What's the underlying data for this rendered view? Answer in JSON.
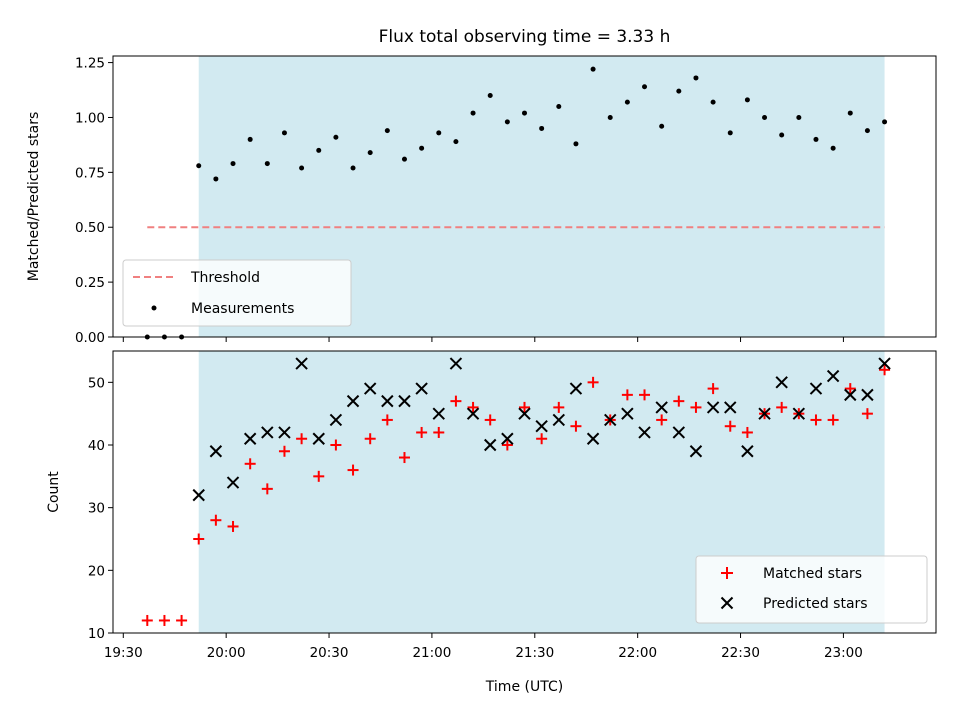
{
  "chart_data": {
    "type": "scatter",
    "title": "Flux total observing time = 3.33 h",
    "xlabel": "Time (UTC)",
    "x_ticks": [
      "19:30",
      "20:00",
      "20:30",
      "21:00",
      "21:30",
      "22:00",
      "22:30",
      "23:00"
    ],
    "x_range": [
      "19:27",
      "23:27"
    ],
    "shaded_interval": [
      "19:52",
      "23:12"
    ],
    "top_panel": {
      "ylabel": "Matched/Predicted stars",
      "ylim": [
        0,
        1.28
      ],
      "y_ticks": [
        "0.00",
        "0.25",
        "0.50",
        "0.75",
        "1.00",
        "1.25"
      ],
      "legend_position": "bottom-left",
      "threshold": {
        "name": "Threshold",
        "value": 0.5,
        "x_start": "19:37",
        "x_end": "23:12",
        "color": "#f08080"
      },
      "measurements": {
        "name": "Measurements",
        "color": "#000000",
        "points": [
          [
            "19:37",
            0.0
          ],
          [
            "19:42",
            0.0
          ],
          [
            "19:47",
            0.0
          ],
          [
            "19:52",
            0.78
          ],
          [
            "19:57",
            0.72
          ],
          [
            "20:02",
            0.79
          ],
          [
            "20:07",
            0.9
          ],
          [
            "20:12",
            0.79
          ],
          [
            "20:17",
            0.93
          ],
          [
            "20:22",
            0.77
          ],
          [
            "20:27",
            0.85
          ],
          [
            "20:32",
            0.91
          ],
          [
            "20:37",
            0.77
          ],
          [
            "20:42",
            0.84
          ],
          [
            "20:47",
            0.94
          ],
          [
            "20:52",
            0.81
          ],
          [
            "20:57",
            0.86
          ],
          [
            "21:02",
            0.93
          ],
          [
            "21:07",
            0.89
          ],
          [
            "21:12",
            1.02
          ],
          [
            "21:17",
            1.1
          ],
          [
            "21:22",
            0.98
          ],
          [
            "21:27",
            1.02
          ],
          [
            "21:32",
            0.95
          ],
          [
            "21:37",
            1.05
          ],
          [
            "21:42",
            0.88
          ],
          [
            "21:47",
            1.22
          ],
          [
            "21:52",
            1.0
          ],
          [
            "21:57",
            1.07
          ],
          [
            "22:02",
            1.14
          ],
          [
            "22:07",
            0.96
          ],
          [
            "22:12",
            1.12
          ],
          [
            "22:17",
            1.18
          ],
          [
            "22:22",
            1.07
          ],
          [
            "22:27",
            0.93
          ],
          [
            "22:32",
            1.08
          ],
          [
            "22:37",
            1.0
          ],
          [
            "22:42",
            0.92
          ],
          [
            "22:47",
            1.0
          ],
          [
            "22:52",
            0.9
          ],
          [
            "22:57",
            0.86
          ],
          [
            "23:02",
            1.02
          ],
          [
            "23:07",
            0.94
          ],
          [
            "23:12",
            0.98
          ]
        ]
      }
    },
    "bottom_panel": {
      "ylabel": "Count",
      "ylim": [
        10,
        55
      ],
      "y_ticks": [
        "10",
        "20",
        "30",
        "40",
        "50"
      ],
      "legend_position": "bottom-right",
      "series": [
        {
          "name": "Matched stars",
          "marker": "plus",
          "color": "#ff0000",
          "points": [
            [
              "19:37",
              12
            ],
            [
              "19:42",
              12
            ],
            [
              "19:47",
              12
            ],
            [
              "19:52",
              25
            ],
            [
              "19:57",
              28
            ],
            [
              "20:02",
              27
            ],
            [
              "20:07",
              37
            ],
            [
              "20:12",
              33
            ],
            [
              "20:17",
              39
            ],
            [
              "20:22",
              41
            ],
            [
              "20:27",
              35
            ],
            [
              "20:32",
              40
            ],
            [
              "20:37",
              36
            ],
            [
              "20:42",
              41
            ],
            [
              "20:47",
              44
            ],
            [
              "20:52",
              38
            ],
            [
              "20:57",
              42
            ],
            [
              "21:02",
              42
            ],
            [
              "21:07",
              47
            ],
            [
              "21:12",
              46
            ],
            [
              "21:17",
              44
            ],
            [
              "21:22",
              40
            ],
            [
              "21:27",
              46
            ],
            [
              "21:32",
              41
            ],
            [
              "21:37",
              46
            ],
            [
              "21:42",
              43
            ],
            [
              "21:47",
              50
            ],
            [
              "21:52",
              44
            ],
            [
              "21:57",
              48
            ],
            [
              "22:02",
              48
            ],
            [
              "22:07",
              44
            ],
            [
              "22:12",
              47
            ],
            [
              "22:17",
              46
            ],
            [
              "22:22",
              49
            ],
            [
              "22:27",
              43
            ],
            [
              "22:32",
              42
            ],
            [
              "22:37",
              45
            ],
            [
              "22:42",
              46
            ],
            [
              "22:47",
              45
            ],
            [
              "22:52",
              44
            ],
            [
              "22:57",
              44
            ],
            [
              "23:02",
              49
            ],
            [
              "23:07",
              45
            ],
            [
              "23:12",
              52
            ]
          ]
        },
        {
          "name": "Predicted stars",
          "marker": "x",
          "color": "#000000",
          "points": [
            [
              "19:52",
              32
            ],
            [
              "19:57",
              39
            ],
            [
              "20:02",
              34
            ],
            [
              "20:07",
              41
            ],
            [
              "20:12",
              42
            ],
            [
              "20:17",
              42
            ],
            [
              "20:22",
              53
            ],
            [
              "20:27",
              41
            ],
            [
              "20:32",
              44
            ],
            [
              "20:37",
              47
            ],
            [
              "20:42",
              49
            ],
            [
              "20:47",
              47
            ],
            [
              "20:52",
              47
            ],
            [
              "20:57",
              49
            ],
            [
              "21:02",
              45
            ],
            [
              "21:07",
              53
            ],
            [
              "21:12",
              45
            ],
            [
              "21:17",
              40
            ],
            [
              "21:22",
              41
            ],
            [
              "21:27",
              45
            ],
            [
              "21:32",
              43
            ],
            [
              "21:37",
              44
            ],
            [
              "21:42",
              49
            ],
            [
              "21:47",
              41
            ],
            [
              "21:52",
              44
            ],
            [
              "21:57",
              45
            ],
            [
              "22:02",
              42
            ],
            [
              "22:07",
              46
            ],
            [
              "22:12",
              42
            ],
            [
              "22:17",
              39
            ],
            [
              "22:22",
              46
            ],
            [
              "22:27",
              46
            ],
            [
              "22:32",
              39
            ],
            [
              "22:37",
              45
            ],
            [
              "22:42",
              50
            ],
            [
              "22:47",
              45
            ],
            [
              "22:52",
              49
            ],
            [
              "22:57",
              51
            ],
            [
              "23:02",
              48
            ],
            [
              "23:07",
              48
            ],
            [
              "23:12",
              53
            ]
          ]
        }
      ]
    },
    "colors": {
      "shade": "#add8e6",
      "shade_opacity": 0.55
    }
  }
}
